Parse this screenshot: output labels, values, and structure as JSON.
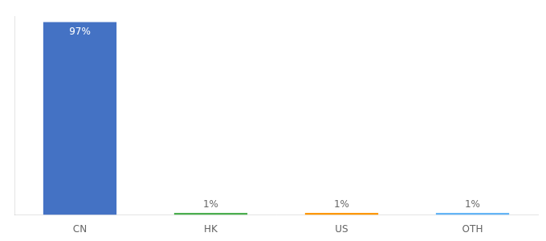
{
  "chart_data": {
    "type": "bar",
    "categories": [
      "CN",
      "HK",
      "US",
      "OTH"
    ],
    "values": [
      97,
      1,
      1,
      1
    ],
    "value_labels": [
      "97%",
      "1%",
      "1%",
      "1%"
    ],
    "colors": [
      "#4472c4",
      "#4caf50",
      "#ff9800",
      "#64b5f6"
    ],
    "ylim": [
      0,
      100
    ],
    "grid": false,
    "data_labels": true,
    "tick_labels": "x"
  }
}
